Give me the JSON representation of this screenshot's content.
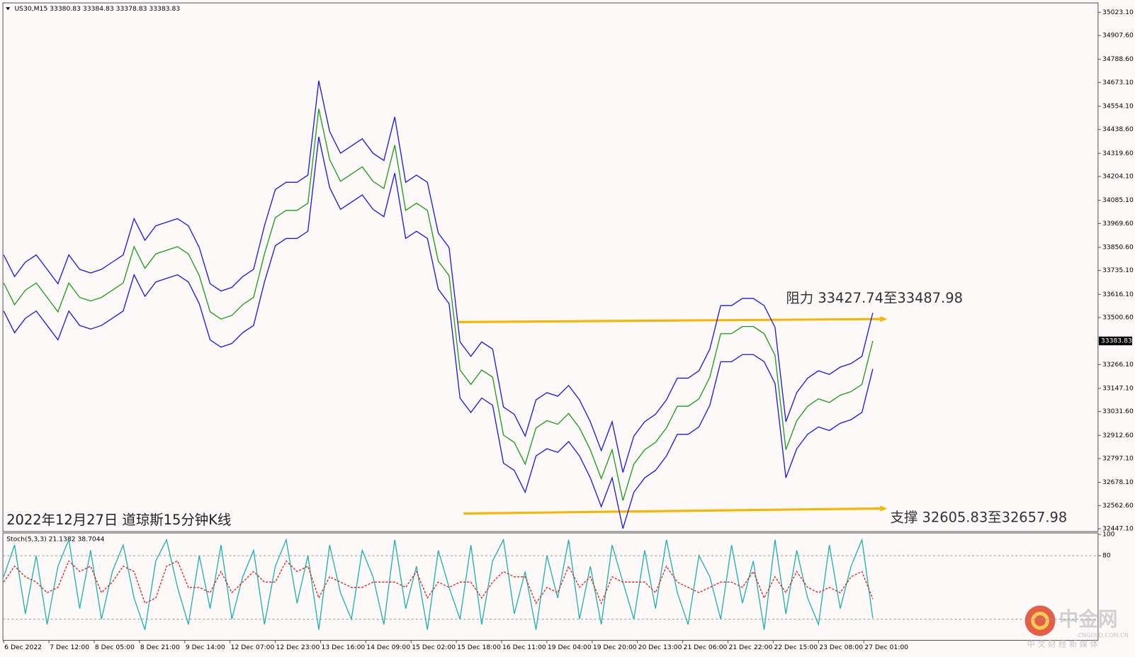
{
  "chart_data": [
    {
      "type": "line",
      "title": "US30,M15  33380.83 33384.83 33378.83 33383.83",
      "annotation": "2022年12月27日 道琼斯15分钟K线",
      "xlim": [
        -0.07,
        100.73
      ],
      "xticks": [
        {
          "value": 0,
          "label": "6 Dec 2022"
        },
        {
          "value": 4.17,
          "label": "7 Dec 12:00"
        },
        {
          "value": 8.33,
          "label": "8 Dec 05:00"
        },
        {
          "value": 12.5,
          "label": "8 Dec 21:00"
        },
        {
          "value": 16.67,
          "label": "9 Dec 14:00"
        },
        {
          "value": 20.83,
          "label": "12 Dec 07:00"
        },
        {
          "value": 25,
          "label": "12 Dec 23:00"
        },
        {
          "value": 29.17,
          "label": "13 Dec 16:00"
        },
        {
          "value": 33.33,
          "label": "14 Dec 09:00"
        },
        {
          "value": 37.5,
          "label": "15 Dec 02:00"
        },
        {
          "value": 41.67,
          "label": "15 Dec 18:00"
        },
        {
          "value": 45.83,
          "label": "16 Dec 11:00"
        },
        {
          "value": 50,
          "label": "19 Dec 04:00"
        },
        {
          "value": 54.17,
          "label": "19 Dec 20:00"
        },
        {
          "value": 58.33,
          "label": "20 Dec 13:00"
        },
        {
          "value": 62.5,
          "label": "21 Dec 06:00"
        },
        {
          "value": 66.67,
          "label": "21 Dec 22:00"
        },
        {
          "value": 70.83,
          "label": "22 Dec 15:00"
        },
        {
          "value": 75,
          "label": "23 Dec 08:00"
        },
        {
          "value": 79.17,
          "label": "27 Dec 01:00"
        }
      ],
      "ylim": [
        32433,
        35070
      ],
      "yticks": [
        {
          "value": 35023.1,
          "label": "35023.10"
        },
        {
          "value": 34907.6,
          "label": "34907.60"
        },
        {
          "value": 34788.6,
          "label": "34788.60"
        },
        {
          "value": 34673.1,
          "label": "34673.10"
        },
        {
          "value": 34554.1,
          "label": "34554.10"
        },
        {
          "value": 34438.6,
          "label": "34438.60"
        },
        {
          "value": 34319.6,
          "label": "34319.60"
        },
        {
          "value": 34204.1,
          "label": "34204.10"
        },
        {
          "value": 34085.1,
          "label": "34085.10"
        },
        {
          "value": 33969.6,
          "label": "33969.60"
        },
        {
          "value": 33850.6,
          "label": "33850.60"
        },
        {
          "value": 33735.1,
          "label": "33735.10"
        },
        {
          "value": 33616.1,
          "label": "33616.10"
        },
        {
          "value": 33500.6,
          "label": "33500.60"
        },
        {
          "value": 33266.1,
          "label": "33266.10"
        },
        {
          "value": 33147.1,
          "label": "33147.10"
        },
        {
          "value": 33031.6,
          "label": "33031.60"
        },
        {
          "value": 32912.6,
          "label": "32912.60"
        },
        {
          "value": 32797.1,
          "label": "32797.10"
        },
        {
          "value": 32678.1,
          "label": "32678.10"
        },
        {
          "value": 32562.6,
          "label": "32562.60"
        },
        {
          "value": 32447.1,
          "label": "32447.10"
        }
      ],
      "last_price": 33383.83,
      "series": [
        {
          "color": "#1a1ae6",
          "values": [
            33813,
            33705,
            33777,
            33813,
            33741,
            33669,
            33813,
            33741,
            33723,
            33741,
            33777,
            33813,
            33994,
            33886,
            33958,
            33976,
            33994,
            33958,
            33850,
            33669,
            33633,
            33651,
            33705,
            33741,
            33958,
            34139,
            34175,
            34175,
            34211,
            34682,
            34429,
            34320,
            34356,
            34392,
            34320,
            34284,
            34501,
            34175,
            34211,
            34175,
            33922,
            33850,
            33379,
            33307,
            33379,
            33343,
            33054,
            33018,
            32909,
            33090,
            33126,
            33108,
            33162,
            33090,
            32981,
            32837,
            32981,
            32728,
            32909,
            32981,
            33018,
            33090,
            33198,
            33198,
            33235,
            33343,
            33560,
            33560,
            33596,
            33596,
            33560,
            33452,
            32981,
            33126,
            33198,
            33235,
            33217,
            33253,
            33271,
            33307,
            33524
          ]
        },
        {
          "color": "#1a1ae6",
          "values": [
            33533,
            33425,
            33497,
            33533,
            33461,
            33389,
            33533,
            33461,
            33443,
            33461,
            33497,
            33533,
            33714,
            33606,
            33678,
            33696,
            33714,
            33678,
            33570,
            33389,
            33353,
            33371,
            33425,
            33461,
            33678,
            33859,
            33895,
            33895,
            33931,
            34402,
            34149,
            34040,
            34076,
            34112,
            34040,
            34004,
            34221,
            33895,
            33931,
            33895,
            33642,
            33570,
            33099,
            33027,
            33099,
            33063,
            32774,
            32738,
            32629,
            32810,
            32846,
            32828,
            32882,
            32810,
            32701,
            32557,
            32701,
            32448,
            32629,
            32701,
            32738,
            32810,
            32918,
            32918,
            32955,
            33063,
            33280,
            33280,
            33316,
            33316,
            33280,
            33172,
            32701,
            32846,
            32918,
            32955,
            32937,
            32973,
            32991,
            33027,
            33244
          ]
        },
        {
          "color": "#1c9c1c",
          "values": [
            33673,
            33565,
            33637,
            33673,
            33601,
            33529,
            33673,
            33601,
            33583,
            33601,
            33637,
            33673,
            33854,
            33746,
            33818,
            33836,
            33854,
            33818,
            33710,
            33529,
            33493,
            33511,
            33565,
            33601,
            33818,
            33999,
            34035,
            34035,
            34071,
            34542,
            34289,
            34180,
            34216,
            34252,
            34180,
            34144,
            34361,
            34035,
            34071,
            34035,
            33782,
            33710,
            33239,
            33167,
            33239,
            33203,
            32914,
            32878,
            32769,
            32950,
            32986,
            32968,
            33022,
            32950,
            32841,
            32697,
            32841,
            32588,
            32769,
            32841,
            32878,
            32950,
            33058,
            33058,
            33095,
            33203,
            33420,
            33420,
            33456,
            33456,
            33420,
            33312,
            32841,
            32986,
            33058,
            33095,
            33077,
            33113,
            33131,
            33167,
            33384
          ]
        }
      ],
      "levels": [
        {
          "label": "阻力 33427.74至33487.98",
          "x": [
            41.8,
            80.67
          ],
          "values": [
            33478,
            33493
          ],
          "color": "#f7b500"
        },
        {
          "label": "支撑 32605.83至32657.98",
          "x": [
            42.33,
            80.67
          ],
          "values": [
            32523,
            32548
          ],
          "color": "#f7b500"
        }
      ]
    },
    {
      "type": "line",
      "title": "Stoch(5,3,3) 21.1382 38.7044",
      "xlim": [
        -0.07,
        100.73
      ],
      "ylim": [
        0,
        100
      ],
      "yticks": [
        100,
        80
      ],
      "levels": [
        80,
        20
      ],
      "series": [
        {
          "color": "#20b2aa",
          "values": [
            60,
            90,
            25,
            80,
            15,
            70,
            95,
            30,
            85,
            20,
            65,
            90,
            40,
            10,
            75,
            95,
            50,
            15,
            80,
            30,
            90,
            20,
            60,
            85,
            15,
            70,
            95,
            35,
            80,
            10,
            90,
            45,
            20,
            85,
            60,
            15,
            95,
            30,
            70,
            10,
            85,
            50,
            20,
            90,
            15,
            75,
            95,
            25,
            65,
            10,
            80,
            40,
            95,
            20,
            70,
            15,
            90,
            55,
            20,
            85,
            30,
            95,
            45,
            15,
            80,
            60,
            20,
            90,
            35,
            75,
            10,
            95,
            25,
            85,
            40,
            15,
            90,
            30,
            70,
            95,
            21
          ]
        },
        {
          "color": "#e02020",
          "dashed": true,
          "values": [
            55,
            70,
            60,
            55,
            45,
            50,
            75,
            65,
            70,
            45,
            55,
            70,
            65,
            35,
            40,
            70,
            75,
            50,
            50,
            45,
            65,
            45,
            55,
            65,
            55,
            55,
            75,
            65,
            70,
            40,
            60,
            55,
            50,
            50,
            55,
            55,
            55,
            50,
            65,
            40,
            55,
            50,
            55,
            55,
            40,
            55,
            65,
            60,
            60,
            35,
            50,
            45,
            70,
            50,
            60,
            35,
            60,
            55,
            55,
            55,
            45,
            70,
            55,
            50,
            45,
            50,
            55,
            55,
            50,
            65,
            40,
            60,
            45,
            65,
            50,
            45,
            50,
            45,
            60,
            65,
            39
          ]
        }
      ]
    }
  ],
  "watermark": {
    "brand": "中金网",
    "site": "CNGOLD.COM.CN",
    "slogan": "中 文 财 经 新 媒 体"
  }
}
